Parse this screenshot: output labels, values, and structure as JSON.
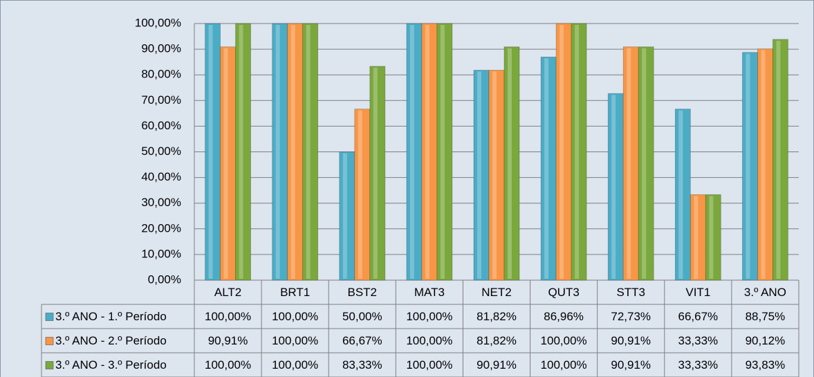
{
  "chart_data": {
    "type": "bar",
    "categories": [
      "ALT2",
      "BRT1",
      "BST2",
      "MAT3",
      "NET2",
      "QUT3",
      "STT3",
      "VIT1",
      "3.º ANO"
    ],
    "series": [
      {
        "name": "3.º ANO - 1.º Período",
        "color": "#4bacc6",
        "values": [
          100,
          100,
          50,
          100,
          81.82,
          86.96,
          72.73,
          66.67,
          88.75
        ],
        "value_labels": [
          "100,00%",
          "100,00%",
          "50,00%",
          "100,00%",
          "81,82%",
          "86,96%",
          "72,73%",
          "66,67%",
          "88,75%"
        ]
      },
      {
        "name": "3.º ANO - 2.º Período",
        "color": "#f79646",
        "values": [
          90.91,
          100,
          66.67,
          100,
          81.82,
          100,
          90.91,
          33.33,
          90.12
        ],
        "value_labels": [
          "90,91%",
          "100,00%",
          "66,67%",
          "100,00%",
          "81,82%",
          "100,00%",
          "90,91%",
          "33,33%",
          "90,12%"
        ]
      },
      {
        "name": "3.º ANO - 3.º Período",
        "color": "#7aa83c",
        "values": [
          100,
          100,
          83.33,
          100,
          90.91,
          100,
          90.91,
          33.33,
          93.83
        ],
        "value_labels": [
          "100,00%",
          "100,00%",
          "83,33%",
          "100,00%",
          "90,91%",
          "100,00%",
          "90,91%",
          "33,33%",
          "93,83%"
        ]
      }
    ],
    "ylim": [
      0,
      100
    ],
    "yticks": [
      {
        "value": 0,
        "label": "0,00%"
      },
      {
        "value": 10,
        "label": "10,00%"
      },
      {
        "value": 20,
        "label": "20,00%"
      },
      {
        "value": 30,
        "label": "30,00%"
      },
      {
        "value": 40,
        "label": "40,00%"
      },
      {
        "value": 50,
        "label": "50,00%"
      },
      {
        "value": 60,
        "label": "60,00%"
      },
      {
        "value": 70,
        "label": "70,00%"
      },
      {
        "value": 80,
        "label": "80,00%"
      },
      {
        "value": 90,
        "label": "90,00%"
      },
      {
        "value": 100,
        "label": "100,00%"
      }
    ],
    "grid": true
  }
}
